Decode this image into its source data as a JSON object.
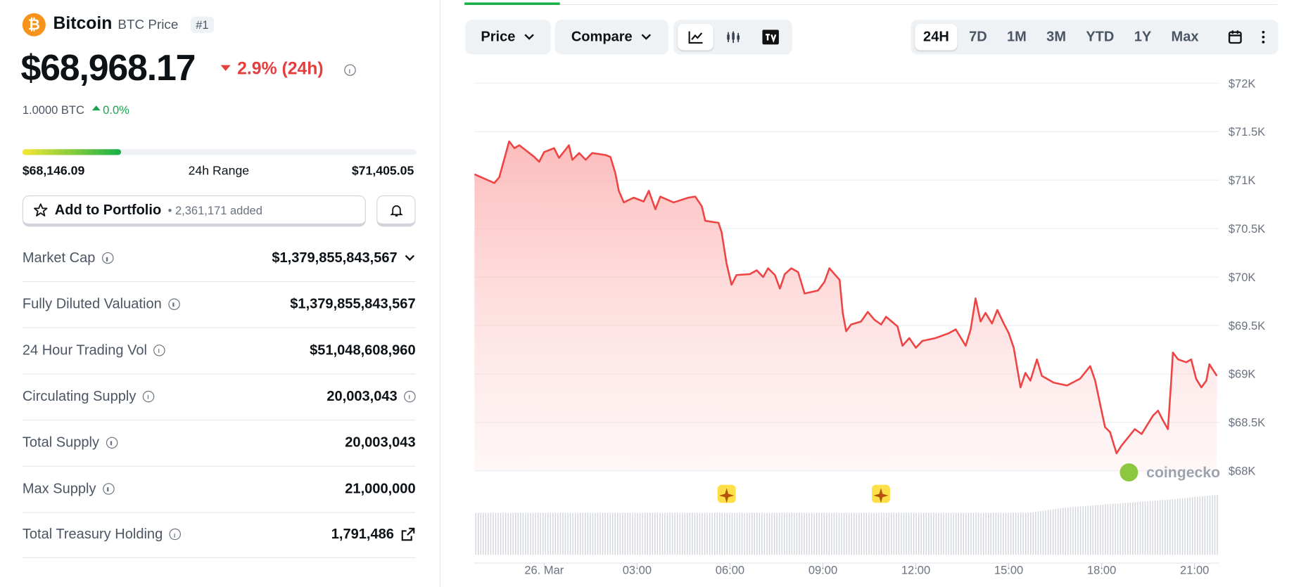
{
  "coin": {
    "name": "Bitcoin",
    "subtitle": "BTC Price",
    "rank": "#1",
    "price": "$68,968.17",
    "change": "2.9% (24h)",
    "btc_amount": "1.0000 BTC",
    "btc_change": "0.0%"
  },
  "range": {
    "low": "$68,146.09",
    "label": "24h Range",
    "high": "$71,405.05"
  },
  "portfolio": {
    "button": "Add to Portfolio",
    "added": "• 2,361,171 added"
  },
  "stats": [
    [
      "Market Cap",
      "$1,379,855,843,567"
    ],
    [
      "Fully Diluted Valuation",
      "$1,379,855,843,567"
    ],
    [
      "24 Hour Trading Vol",
      "$51,048,608,960"
    ],
    [
      "Circulating Supply",
      "20,003,043"
    ],
    [
      "Total Supply",
      "20,003,043"
    ],
    [
      "Max Supply",
      "21,000,000"
    ],
    [
      "Total Treasury Holding",
      "1,791,486"
    ]
  ],
  "toolbar": {
    "price": "Price",
    "compare": "Compare",
    "ranges": [
      "24H",
      "7D",
      "1M",
      "3M",
      "YTD",
      "1Y",
      "Max"
    ]
  },
  "watermark": "coingecko",
  "chart_data": {
    "type": "line",
    "color": "#ef4444",
    "x": [
      -2.25,
      -1.82,
      -1.61,
      -1.45,
      -1.13,
      -0.96,
      -0.8,
      -0.32,
      -0.16,
      0,
      0.32,
      0.48,
      0.8,
      0.91,
      1.13,
      1.34,
      1.55,
      1.98,
      2.14,
      2.3,
      2.41,
      2.57,
      2.89,
      3.21,
      3.38,
      3.59,
      3.75,
      4.18,
      4.66,
      4.88,
      5.09,
      5.2,
      5.63,
      5.73,
      5.89,
      6.05,
      6.21,
      6.64,
      6.86,
      7.07,
      7.23,
      7.45,
      7.61,
      7.77,
      7.98,
      8.2,
      8.41,
      8.84,
      9.05,
      9.21,
      9.54,
      9.64,
      9.75,
      9.91,
      10.23,
      10.45,
      10.66,
      10.88,
      11.04,
      11.41,
      11.57,
      11.79,
      12,
      12.21,
      12.64,
      13.07,
      13.29,
      13.61,
      13.77,
      13.93,
      14.09,
      14.25,
      14.46,
      14.63,
      14.84,
      15,
      15.16,
      15.38,
      15.54,
      15.7,
      15.91,
      16.07,
      16.45,
      16.88,
      17.3,
      17.63,
      17.79,
      17.95,
      18.11,
      18.27,
      18.48,
      18.64,
      19.07,
      19.29,
      19.66,
      19.82,
      19.98,
      20.14,
      20.25,
      20.3,
      20.47,
      20.73,
      20.89,
      21.05,
      21.22,
      21.38,
      21.48,
      21.72
    ],
    "values": [
      71060,
      71000,
      70970,
      71030,
      71400,
      71330,
      71360,
      71240,
      71190,
      71290,
      71330,
      71230,
      71360,
      71210,
      71280,
      71210,
      71280,
      71260,
      71240,
      71070,
      70890,
      70770,
      70820,
      70780,
      70890,
      70700,
      70830,
      70770,
      70820,
      70830,
      70730,
      70580,
      70560,
      70460,
      70140,
      69920,
      70020,
      70030,
      70070,
      70000,
      70090,
      70020,
      69880,
      70030,
      70090,
      70050,
      69830,
      69860,
      69950,
      70090,
      69970,
      69630,
      69440,
      69510,
      69540,
      69640,
      69560,
      69510,
      69590,
      69490,
      69290,
      69370,
      69270,
      69340,
      69370,
      69420,
      69460,
      69290,
      69460,
      69780,
      69540,
      69630,
      69520,
      69660,
      69520,
      69420,
      69270,
      68860,
      69010,
      68930,
      69150,
      68980,
      68910,
      68880,
      68950,
      69080,
      68930,
      68690,
      68450,
      68400,
      68180,
      68260,
      68430,
      68380,
      68570,
      68620,
      68520,
      68430,
      68950,
      69220,
      69150,
      69120,
      69150,
      68950,
      68860,
      68930,
      69100,
      68980
    ],
    "xlim": [
      -2.25,
      21.72
    ],
    "xticks": [
      {
        "value": 0,
        "label": "26. Mar"
      },
      {
        "value": 3,
        "label": "03:00"
      },
      {
        "value": 6,
        "label": "06:00"
      },
      {
        "value": 9,
        "label": "09:00"
      },
      {
        "value": 12,
        "label": "12:00"
      },
      {
        "value": 15,
        "label": "15:00"
      },
      {
        "value": 18,
        "label": "18:00"
      },
      {
        "value": 21,
        "label": "21:00"
      }
    ],
    "ylim": [
      68000,
      72000
    ],
    "yticks": [
      {
        "value": 68000,
        "label": "$68K"
      },
      {
        "value": 68500,
        "label": "$68.5K"
      },
      {
        "value": 69000,
        "label": "$69K"
      },
      {
        "value": 69500,
        "label": "$69.5K"
      },
      {
        "value": 70000,
        "label": "$70K"
      },
      {
        "value": 70500,
        "label": "$70.5K"
      },
      {
        "value": 71000,
        "label": "$71K"
      },
      {
        "value": 71500,
        "label": "$71.5K"
      },
      {
        "value": 72000,
        "label": "$72K"
      }
    ],
    "grid": true
  }
}
